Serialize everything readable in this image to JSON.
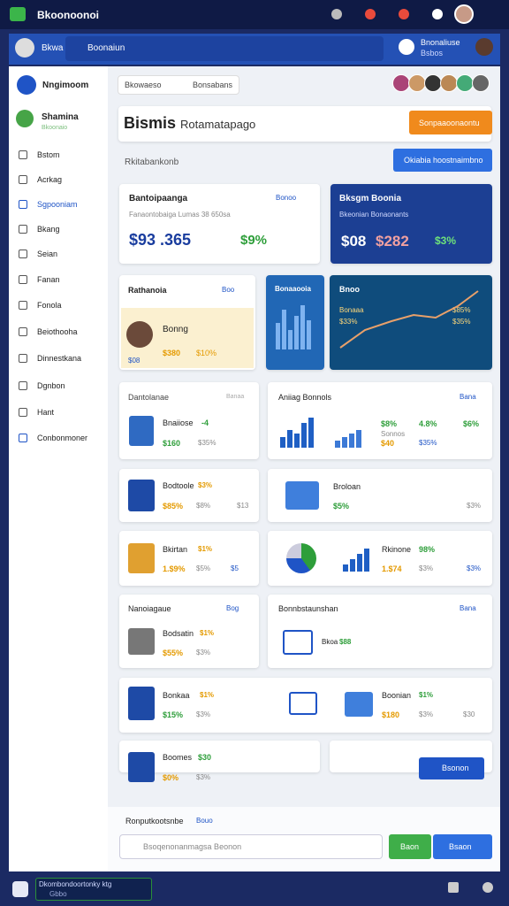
{
  "topbar": {
    "title": "Bkoonoonoi"
  },
  "searchbar": {
    "user": "Bkwa",
    "search": "Boonaiun",
    "brand": "Bnonaliuse",
    "brand_sub": "Bsbos"
  },
  "sidebar": {
    "header": "Nngimoom",
    "profile": "Shamina",
    "profile_sub": "Bkoonaio",
    "items": [
      "Bstom",
      "Acrkag",
      "Sgpooniam",
      "Bkang",
      "Seian",
      "Fanan",
      "Fonola",
      "Beiothooha",
      "Dinnestkana",
      "Dgnbon",
      "Hant",
      "Conbonmoner"
    ]
  },
  "main": {
    "filter": "Bkowaeso",
    "filter2": "Bonsabans",
    "title": "Bismis",
    "title_sub": "Rotamatapago",
    "header_btn": "Sonpaaoonaontu",
    "subtitle": "Rkitabankonb",
    "primary_btn": "Okiabia hoostnaimbno"
  },
  "cards": [
    {
      "title": "Bantoipaanga",
      "link": "Bonoo",
      "desc": "Fanaontobaiga Lumas 38 650sa",
      "value": "$93 .365",
      "change": "$9%"
    },
    {
      "title": "Bksgm Boonia",
      "desc": "Bkeonian Bonaonants",
      "value": "$08",
      "value2": "$282",
      "change": "$3%"
    },
    {
      "title": "Rathanoia",
      "link": "Boo",
      "name": "Bonng",
      "value": "$380",
      "change": "$10%",
      "extra": "$08"
    },
    {
      "title": "Bonaaooia"
    },
    {
      "title": "Bnoo",
      "desc": "Bonaaa",
      "value": "$33%",
      "change": "$85%",
      "extra": "$35%"
    },
    {
      "title": "Dantolanae",
      "link": "Banaa",
      "name": "Bnaiiose",
      "badge": "-4",
      "value": "$160",
      "change": "$35%"
    },
    {
      "title": "Aniiag Bonnols",
      "link": "Bana",
      "v1": "$8%",
      "v2": "4.8%",
      "v3": "$6%",
      "name": "Sonnos",
      "value": "$40",
      "change": "$35%"
    },
    {
      "title": "Bodtoole",
      "badge": "$3%",
      "value": "$85%",
      "change": "$8%",
      "extra": "$13"
    },
    {
      "title": "Broloan",
      "value": "$5%",
      "change": "$3%"
    },
    {
      "title": "Bkirtan",
      "badge": "$1%",
      "value": "1.$9%",
      "change": "$5%",
      "extra": "$5"
    },
    {
      "title": "Rkinone",
      "badge": "98%",
      "value": "1.$74",
      "change": "$3%",
      "extra": "$3%"
    },
    {
      "title": "Nanoiagaue",
      "link": "Bog",
      "name": "Bodsatin",
      "badge": "$1%",
      "value": "$55%",
      "change": "$3%"
    },
    {
      "title": "Bonnbstaunshan",
      "link": "Bana",
      "name": "Bkoa",
      "badge": "$88"
    },
    {
      "title": "Bonkaa",
      "badge": "$1%",
      "value": "$15%",
      "change": "$3%"
    },
    {
      "title": "Boonian",
      "badge": "$1%",
      "value": "$180",
      "change": "$3%",
      "extra": "$30"
    },
    {
      "title": "Boomes",
      "badge": "$30",
      "value": "$0%",
      "change": "$3%"
    },
    {
      "button": "Bsonon"
    }
  ],
  "bottom": {
    "title": "Ronputkootsnbe",
    "link": "Bouo",
    "search": "Bsoqenonanmagsa Beonon",
    "btn1": "Baon",
    "btn2": "Bsaon"
  },
  "footer": {
    "text": "Dkombondoortonky ktg",
    "sub": "Gbbo"
  }
}
